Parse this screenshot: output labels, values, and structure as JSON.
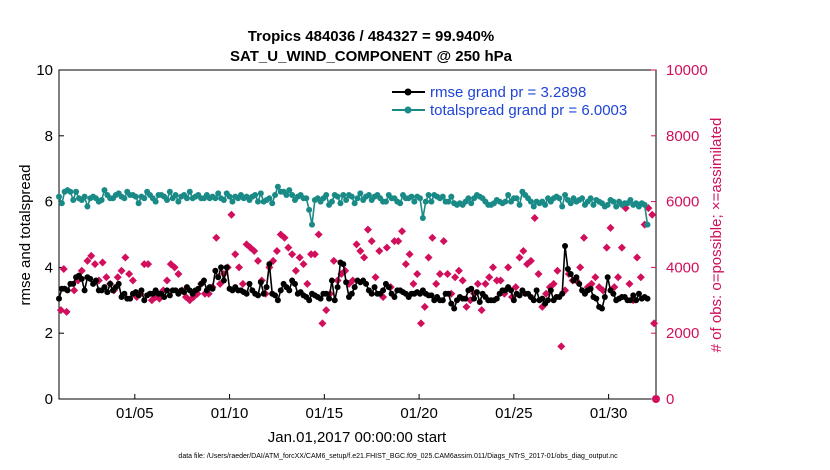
{
  "chart_data": {
    "type": "line",
    "title_line1": "Tropics 484036 / 484327 = 99.940%",
    "title_line2": "SAT_U_WIND_COMPONENT @ 250 hPa",
    "ylabel": "rmse and totalspread",
    "ylabel_right": "# of obs: o=possible; ×=assimilated",
    "xlabel": "Jan.01,2017 00:00:00 start",
    "footnote": "data file: /Users/raeder/DAI/ATM_forcXX/CAM6_setup/f.e21.FHIST_BGC.f09_025.CAM6assim.011/Diags_NTrS_2017-01/obs_diag_output.nc",
    "xlim": [
      1,
      32.5
    ],
    "ylim": [
      0,
      10
    ],
    "ylim_right": [
      0,
      10000
    ],
    "x_ticks": [
      5,
      10,
      15,
      20,
      25,
      30
    ],
    "x_tick_labels": [
      "01/05",
      "01/10",
      "01/15",
      "01/20",
      "01/25",
      "01/30"
    ],
    "y_ticks": [
      0,
      2,
      4,
      6,
      8,
      10
    ],
    "y_tick_labels": [
      "0",
      "2",
      "4",
      "6",
      "8",
      "10"
    ],
    "y_right_ticks": [
      0,
      2000,
      4000,
      6000,
      8000,
      10000
    ],
    "y_right_tick_labels": [
      "0",
      "2000",
      "4000",
      "6000",
      "8000",
      "10000"
    ],
    "colors": {
      "rmse": "#000000",
      "spread": "#1a8a87",
      "obs": "#d10f5c",
      "legend_text": "#1f44d8"
    },
    "series": [
      {
        "name": "rmse grand pr = 3.2898",
        "marker": "circle",
        "color": "#000000",
        "values": [
          3.05,
          3.35,
          3.35,
          3.3,
          3.5,
          3.5,
          3.7,
          3.75,
          3.65,
          3.3,
          3.7,
          3.65,
          3.5,
          3.6,
          3.3,
          3.3,
          3.4,
          3.25,
          3.5,
          3.3,
          3.4,
          3.5,
          3.1,
          3.2,
          3.05,
          3.05,
          3.2,
          3.25,
          3.15,
          3.3,
          3.0,
          3.15,
          3.2,
          3.2,
          3.3,
          3.2,
          3.2,
          3.1,
          3.3,
          3.15,
          3.3,
          3.3,
          3.2,
          3.3,
          3.25,
          3.4,
          3.3,
          3.2,
          3.3,
          3.35,
          3.5,
          3.6,
          3.3,
          3.4,
          3.35,
          3.9,
          3.7,
          4.0,
          3.6,
          4.0,
          3.35,
          3.3,
          3.4,
          3.3,
          3.3,
          3.25,
          3.2,
          3.5,
          3.3,
          3.2,
          3.15,
          3.55,
          3.2,
          3.4,
          4.1,
          3.2,
          3.15,
          3.0,
          3.3,
          3.5,
          3.4,
          3.3,
          3.6,
          3.5,
          3.2,
          3.25,
          3.15,
          3.1,
          3.0,
          3.2,
          3.15,
          3.1,
          3.05,
          3.2,
          3.2,
          3.05,
          3.6,
          3.0,
          3.4,
          4.15,
          4.1,
          3.55,
          3.1,
          3.2,
          3.4,
          3.6,
          3.55,
          3.6,
          3.5,
          3.3,
          3.2,
          3.4,
          3.2,
          3.2,
          3.3,
          3.5,
          3.4,
          3.2,
          3.1,
          3.3,
          3.3,
          3.25,
          3.2,
          3.1,
          3.2,
          3.2,
          3.25,
          3.2,
          3.3,
          3.2,
          3.15,
          3.15,
          3.0,
          3.1,
          3.0,
          3.0,
          3.2,
          3.2,
          2.9,
          2.75,
          3.0,
          3.1,
          3.05,
          3.05,
          3.3,
          3.35,
          3.05,
          3.25,
          2.95,
          3.2,
          3.1,
          3.0,
          3.0,
          3.0,
          3.05,
          3.2,
          3.3,
          3.3,
          3.4,
          3.3,
          3.0,
          3.2,
          3.15,
          3.3,
          3.2,
          3.2,
          3.1,
          3.0,
          3.3,
          3.0,
          3.05,
          2.9,
          3.0,
          3.3,
          3.0,
          3.1,
          3.1,
          3.2,
          4.65,
          3.95,
          3.8,
          3.6,
          3.7,
          3.5,
          3.3,
          3.2,
          3.3,
          3.35,
          3.1,
          3.05,
          2.8,
          2.75,
          3.1,
          3.7,
          3.3,
          3.2,
          3.0,
          3.05,
          3.1,
          3.1,
          3.0,
          3.0,
          3.15,
          3.0,
          3.2,
          3.05,
          3.1,
          3.05
        ],
        "x_step": 0.15
      },
      {
        "name": "totalspread grand pr = 6.0003",
        "marker": "circle",
        "color": "#1a8a87",
        "values": [
          6.15,
          5.95,
          6.3,
          6.35,
          6.3,
          6.05,
          6.3,
          6.1,
          6.05,
          6.15,
          5.85,
          6.1,
          6.15,
          6.1,
          6.0,
          6.05,
          6.35,
          6.2,
          6.1,
          6.1,
          6.2,
          6.25,
          6.15,
          6.1,
          6.3,
          6.2,
          6.2,
          6.15,
          5.95,
          6.15,
          6.1,
          6.3,
          6.2,
          6.1,
          6.0,
          6.2,
          6.2,
          6.15,
          6.05,
          6.3,
          6.1,
          6.2,
          6.0,
          6.15,
          6.2,
          6.1,
          6.3,
          6.1,
          6.15,
          6.2,
          6.1,
          6.1,
          6.2,
          6.1,
          6.15,
          6.1,
          6.25,
          6.1,
          6.05,
          6.25,
          6.15,
          6.0,
          6.15,
          6.1,
          6.2,
          6.1,
          6.15,
          6.05,
          6.15,
          6.2,
          6.0,
          6.25,
          6.0,
          6.05,
          6.1,
          5.95,
          6.2,
          6.45,
          6.3,
          6.3,
          6.2,
          6.35,
          6.2,
          6.05,
          6.15,
          6.2,
          6.1,
          6.1,
          5.75,
          5.3,
          6.05,
          6.1,
          6.0,
          6.1,
          6.2,
          5.9,
          6.0,
          6.2,
          6.15,
          5.95,
          6.2,
          6.05,
          6.2,
          6.15,
          5.95,
          6.1,
          6.25,
          6.05,
          6.15,
          6.2,
          6.05,
          6.15,
          6.2,
          6.1,
          6.0,
          6.0,
          6.2,
          6.1,
          6.1,
          6.0,
          5.95,
          6.2,
          6.1,
          6.1,
          6.15,
          6.0,
          6.15,
          6.1,
          5.5,
          6.0,
          6.2,
          6.0,
          6.2,
          6.15,
          6.1,
          6.15,
          6.0,
          6.0,
          6.15,
          5.95,
          5.9,
          5.95,
          5.9,
          6.0,
          6.1,
          5.95,
          6.1,
          6.2,
          6.15,
          6.1,
          6.0,
          5.9,
          5.9,
          5.95,
          6.05,
          6.0,
          5.95,
          6.0,
          6.2,
          6.0,
          6.1,
          6.1,
          5.9,
          6.3,
          6.2,
          6.1,
          6.0,
          5.85,
          6.0,
          5.95,
          6.0,
          5.9,
          6.1,
          6.0,
          6.1,
          6.15,
          6.1,
          5.85,
          6.2,
          6.05,
          5.95,
          6.1,
          6.0,
          6.05,
          6.1,
          5.9,
          6.0,
          6.1,
          5.9,
          6.05,
          6.0,
          5.95,
          5.85,
          5.9,
          6.05,
          6.0,
          5.85,
          6.0,
          5.9,
          5.95,
          5.95,
          6.05,
          5.9,
          5.95,
          5.85,
          5.95,
          5.9,
          5.3
        ],
        "x_step": 0.15
      },
      {
        "name": "obs possible/assimilated",
        "marker": "x",
        "color": "#d10f5c",
        "y_axis": "right",
        "points": [
          [
            1.1,
            2700
          ],
          [
            1.25,
            3950
          ],
          [
            1.4,
            2650
          ],
          [
            1.8,
            3300
          ],
          [
            2.0,
            3600
          ],
          [
            2.2,
            3900
          ],
          [
            2.5,
            4200
          ],
          [
            2.7,
            4350
          ],
          [
            2.9,
            4100
          ],
          [
            3.1,
            3600
          ],
          [
            3.3,
            4150
          ],
          [
            3.5,
            3700
          ],
          [
            3.7,
            3500
          ],
          [
            3.9,
            3300
          ],
          [
            4.1,
            3700
          ],
          [
            4.3,
            3900
          ],
          [
            4.5,
            4300
          ],
          [
            4.7,
            3800
          ],
          [
            4.9,
            3600
          ],
          [
            5.1,
            3100
          ],
          [
            5.3,
            3200
          ],
          [
            5.5,
            4100
          ],
          [
            5.7,
            4100
          ],
          [
            5.9,
            3000
          ],
          [
            6.1,
            3100
          ],
          [
            6.3,
            3050
          ],
          [
            6.5,
            3300
          ],
          [
            6.7,
            3600
          ],
          [
            6.9,
            4100
          ],
          [
            7.1,
            4000
          ],
          [
            7.3,
            3800
          ],
          [
            7.5,
            3300
          ],
          [
            7.7,
            3100
          ],
          [
            7.9,
            3000
          ],
          [
            8.1,
            3100
          ],
          [
            8.3,
            3200
          ],
          [
            8.5,
            3500
          ],
          [
            8.7,
            3200
          ],
          [
            8.9,
            3200
          ],
          [
            9.1,
            3400
          ],
          [
            9.3,
            4900
          ],
          [
            9.5,
            3500
          ],
          [
            9.7,
            3800
          ],
          [
            9.9,
            4000
          ],
          [
            10.1,
            5600
          ],
          [
            10.3,
            4400
          ],
          [
            10.5,
            4000
          ],
          [
            10.7,
            3500
          ],
          [
            10.9,
            4700
          ],
          [
            11.1,
            4600
          ],
          [
            11.3,
            4500
          ],
          [
            11.5,
            4200
          ],
          [
            11.7,
            3600
          ],
          [
            11.9,
            3200
          ],
          [
            12.1,
            4000
          ],
          [
            12.3,
            4200
          ],
          [
            12.5,
            4500
          ],
          [
            12.7,
            5000
          ],
          [
            12.9,
            4900
          ],
          [
            13.1,
            4600
          ],
          [
            13.3,
            4400
          ],
          [
            13.5,
            3900
          ],
          [
            13.7,
            4300
          ],
          [
            13.9,
            4100
          ],
          [
            14.1,
            3500
          ],
          [
            14.3,
            4400
          ],
          [
            14.5,
            4400
          ],
          [
            14.7,
            5000
          ],
          [
            14.9,
            2300
          ],
          [
            15.1,
            2700
          ],
          [
            15.3,
            3200
          ],
          [
            15.5,
            4200
          ],
          [
            15.7,
            3600
          ],
          [
            15.9,
            3800
          ],
          [
            16.1,
            3900
          ],
          [
            16.3,
            3500
          ],
          [
            16.5,
            3600
          ],
          [
            16.7,
            4700
          ],
          [
            16.9,
            4500
          ],
          [
            17.1,
            4300
          ],
          [
            17.3,
            5150
          ],
          [
            17.5,
            4800
          ],
          [
            17.7,
            3700
          ],
          [
            17.9,
            4500
          ],
          [
            18.1,
            3100
          ],
          [
            18.3,
            4600
          ],
          [
            18.5,
            3400
          ],
          [
            18.7,
            4800
          ],
          [
            18.9,
            4800
          ],
          [
            19.1,
            5100
          ],
          [
            19.3,
            4100
          ],
          [
            19.5,
            4400
          ],
          [
            19.7,
            3500
          ],
          [
            19.9,
            3800
          ],
          [
            20.1,
            2300
          ],
          [
            20.3,
            2800
          ],
          [
            20.5,
            4300
          ],
          [
            20.7,
            4900
          ],
          [
            20.9,
            3500
          ],
          [
            21.1,
            3800
          ],
          [
            21.3,
            4800
          ],
          [
            21.5,
            3800
          ],
          [
            21.7,
            3200
          ],
          [
            21.9,
            3700
          ],
          [
            22.1,
            3900
          ],
          [
            22.3,
            3600
          ],
          [
            22.5,
            2800
          ],
          [
            22.7,
            3000
          ],
          [
            22.9,
            3200
          ],
          [
            23.1,
            3500
          ],
          [
            23.3,
            2700
          ],
          [
            23.5,
            3500
          ],
          [
            23.7,
            3700
          ],
          [
            23.9,
            4000
          ],
          [
            24.1,
            3600
          ],
          [
            24.3,
            3600
          ],
          [
            24.5,
            3200
          ],
          [
            24.7,
            4000
          ],
          [
            24.9,
            3100
          ],
          [
            25.1,
            3400
          ],
          [
            25.3,
            4300
          ],
          [
            25.5,
            4500
          ],
          [
            25.7,
            4100
          ],
          [
            25.9,
            4200
          ],
          [
            26.1,
            5500
          ],
          [
            26.3,
            3800
          ],
          [
            26.5,
            2800
          ],
          [
            26.7,
            3200
          ],
          [
            26.9,
            3400
          ],
          [
            27.1,
            3500
          ],
          [
            27.3,
            3900
          ],
          [
            27.5,
            1600
          ],
          [
            27.7,
            3300
          ],
          [
            27.9,
            3800
          ],
          [
            28.1,
            3600
          ],
          [
            28.3,
            3600
          ],
          [
            28.5,
            4000
          ],
          [
            28.7,
            4900
          ],
          [
            28.9,
            3400
          ],
          [
            29.1,
            3500
          ],
          [
            29.3,
            3700
          ],
          [
            29.5,
            3400
          ],
          [
            29.7,
            3300
          ],
          [
            29.9,
            4600
          ],
          [
            30.1,
            5200
          ],
          [
            30.3,
            3400
          ],
          [
            30.5,
            3700
          ],
          [
            30.7,
            4600
          ],
          [
            30.9,
            5800
          ],
          [
            31.1,
            3500
          ],
          [
            31.3,
            3000
          ],
          [
            31.5,
            4300
          ],
          [
            31.7,
            3700
          ],
          [
            31.9,
            5300
          ],
          [
            32.1,
            5800
          ],
          [
            32.3,
            5600
          ],
          [
            32.4,
            2300
          ]
        ],
        "final_point": [
          32.5,
          0
        ]
      }
    ],
    "legend_location": "top-right"
  }
}
